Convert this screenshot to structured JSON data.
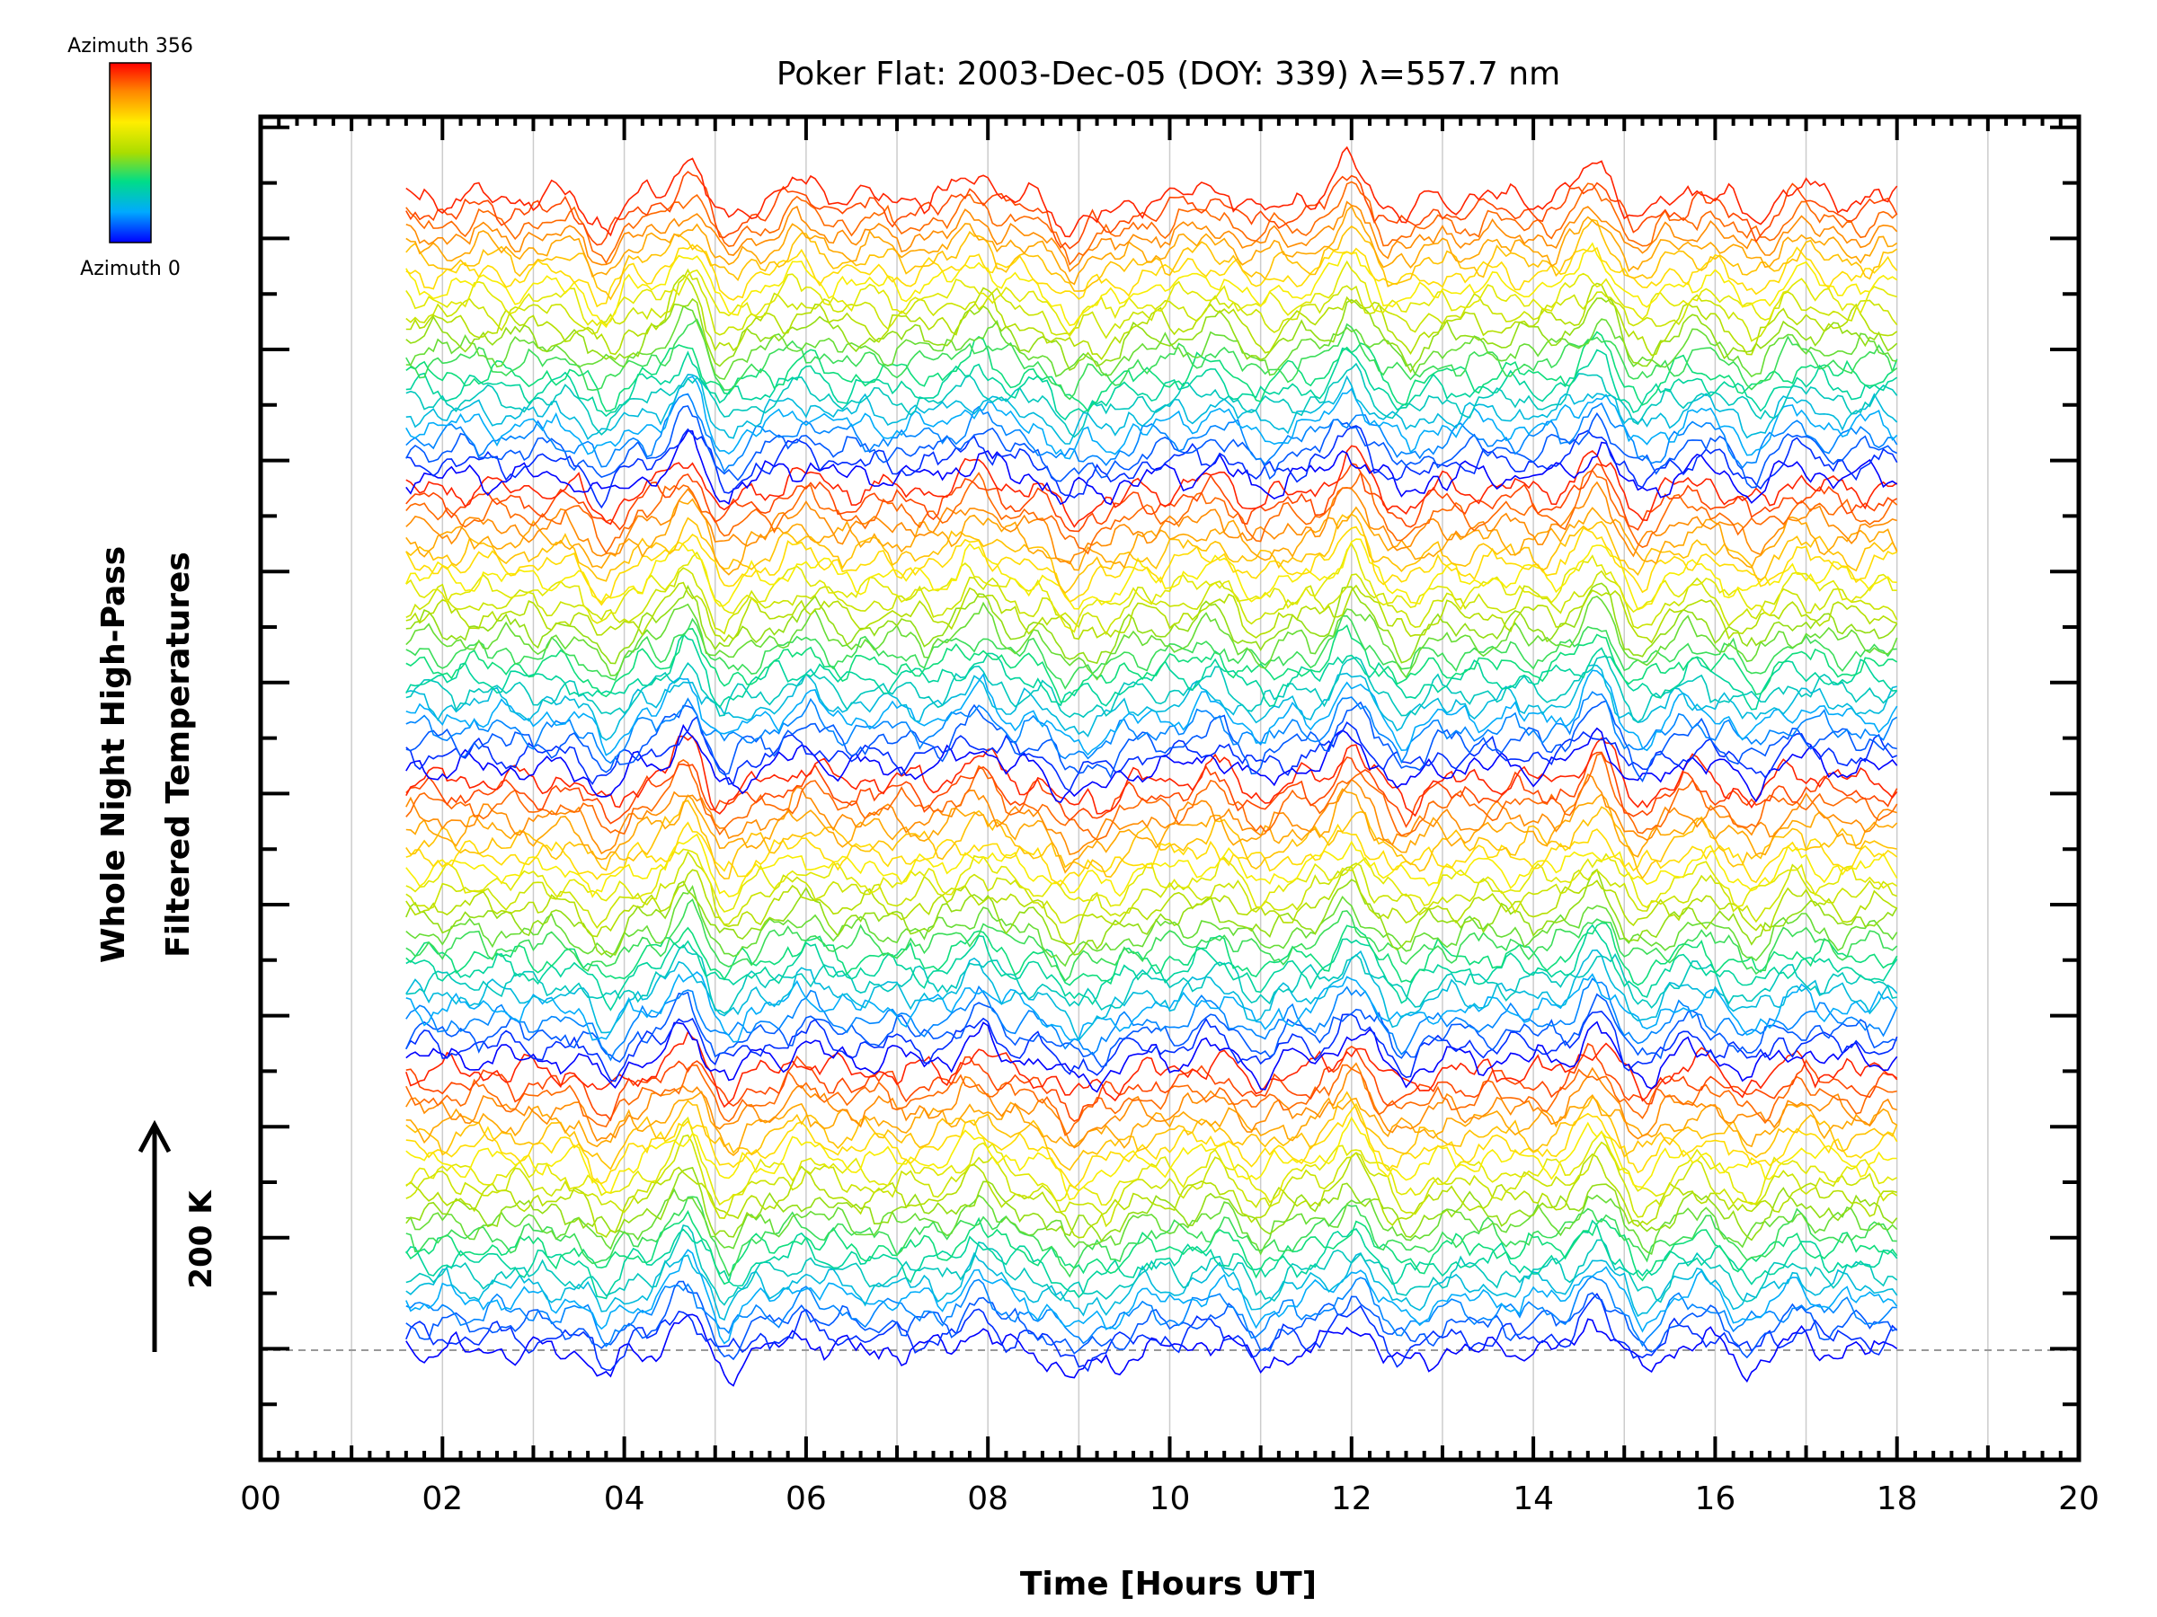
{
  "chart_data": {
    "type": "line",
    "title": "Poker Flat: 2003-Dec-05 (DOY: 339) λ=557.7 nm",
    "xlabel": "Time [Hours UT]",
    "ylabel": [
      "Whole Night High-Pass",
      "Filtered Temperatures"
    ],
    "xlim": [
      0,
      20
    ],
    "xticks": [
      "00",
      "02",
      "04",
      "06",
      "08",
      "10",
      "12",
      "14",
      "16",
      "18",
      "20"
    ],
    "x_start": 1.6,
    "x_end": 18.0,
    "grid": "vertical",
    "scale_bar": {
      "label": "200 K",
      "direction": "up"
    },
    "colorbar": {
      "top_label": "Azimuth 356",
      "bottom_label": "Azimuth 0",
      "colormap": "rainbow",
      "placement": "top-left"
    },
    "azimuth_cycles": 4,
    "n_series": 92,
    "common_features": [
      {
        "t": 3.8,
        "amp": -1.0
      },
      {
        "t": 4.7,
        "amp": 1.4
      },
      {
        "t": 5.1,
        "amp": -0.9
      },
      {
        "t": 6.0,
        "amp": 0.6
      },
      {
        "t": 7.9,
        "amp": 0.9
      },
      {
        "t": 8.9,
        "amp": -1.0
      },
      {
        "t": 9.3,
        "amp": -0.7
      },
      {
        "t": 10.5,
        "amp": 0.5
      },
      {
        "t": 11.0,
        "amp": -0.6
      },
      {
        "t": 12.0,
        "amp": 1.2
      },
      {
        "t": 12.6,
        "amp": -0.7
      },
      {
        "t": 14.7,
        "amp": 1.3
      },
      {
        "t": 15.2,
        "amp": -0.8
      },
      {
        "t": 15.8,
        "amp": 0.4
      },
      {
        "t": 16.4,
        "amp": -0.7
      },
      {
        "t": 16.9,
        "amp": 0.4
      }
    ],
    "colors": {
      "axis": "#000000",
      "grid": "#cccccc",
      "baseline": "#999999",
      "colorbar_stops": [
        "#0000ff",
        "#00aaff",
        "#00dd88",
        "#aadd00",
        "#ffee00",
        "#ff8800",
        "#ff0000"
      ]
    }
  }
}
